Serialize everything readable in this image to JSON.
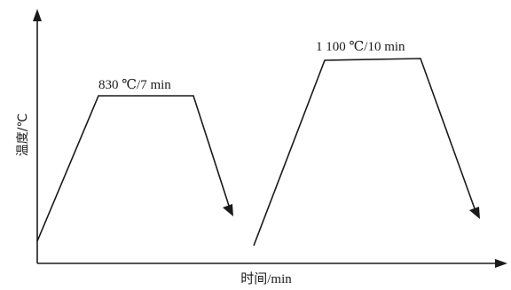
{
  "axes": {
    "x_label": "时间/min",
    "y_label": "温度/℃"
  },
  "stages": [
    {
      "label": "830 ℃/7 min"
    },
    {
      "label": "1 100 ℃/10 min"
    }
  ]
}
